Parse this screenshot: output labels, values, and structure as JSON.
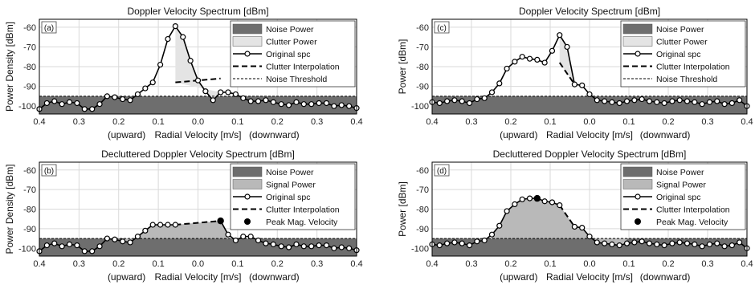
{
  "colors": {
    "noise_fill": "#6e6e6e",
    "clutter_fill": "#e4e4e4",
    "signal_fill": "#b9b9b9",
    "line": "#000000",
    "grid": "#d9d9d9",
    "background": "#ffffff"
  },
  "chart_data": [
    {
      "type": "area",
      "panel_label": "(a)",
      "title": "Doppler Velocity Spectrum [dBm]",
      "ylabel": "Power Density [dBm]",
      "xlabel": "Radial Velocity [m/s]",
      "x_direction_left": "(upward)",
      "x_direction_right": "(downward)",
      "xticks": [
        "0.4",
        "0.3",
        "0.2",
        "0.1",
        "0.0",
        "0.1",
        "0.2",
        "0.3",
        "0.4"
      ],
      "yticks": [
        "-60",
        "-70",
        "-80",
        "-90",
        "-100"
      ],
      "xlim": [
        -0.4,
        0.4
      ],
      "ylim": [
        -104,
        -56
      ],
      "grid": true,
      "legend_position": "top-right",
      "legend": [
        "Noise Power",
        "Clutter Power",
        "Original spc",
        "Clutter Interpolation",
        "Noise Threshold"
      ],
      "mode": "clutter",
      "noise_level": -95,
      "band": [
        -0.05,
        0.05
      ],
      "peak": null,
      "x": [
        -0.4,
        -0.381,
        -0.362,
        -0.343,
        -0.324,
        -0.305,
        -0.286,
        -0.267,
        -0.248,
        -0.229,
        -0.21,
        -0.19,
        -0.171,
        -0.152,
        -0.133,
        -0.114,
        -0.095,
        -0.076,
        -0.057,
        -0.038,
        -0.019,
        0.0,
        0.019,
        0.038,
        0.057,
        0.076,
        0.095,
        0.114,
        0.133,
        0.152,
        0.171,
        0.19,
        0.21,
        0.229,
        0.248,
        0.267,
        0.286,
        0.305,
        0.324,
        0.343,
        0.362,
        0.381,
        0.4
      ],
      "y": [
        -101.5,
        -98.5,
        -97.5,
        -99,
        -98,
        -98.5,
        -101.5,
        -101.5,
        -99,
        -95,
        -95.5,
        -96.5,
        -97,
        -94,
        -91,
        -88,
        -79,
        -66,
        -59.5,
        -65,
        -77,
        -87,
        -92.5,
        -97,
        -93,
        -93,
        -94,
        -96,
        -97.5,
        -97.5,
        -97,
        -98,
        -99,
        -99.5,
        -98,
        -99,
        -99,
        -98.5,
        -98.5,
        -100,
        -99.5,
        -100,
        -101
      ],
      "interpolation": {
        "x": [
          -0.057,
          0.057
        ],
        "y": [
          -88,
          -86
        ]
      }
    },
    {
      "type": "area",
      "panel_label": "(b)",
      "title": "Decluttered Doppler Velocity Spectrum [dBm]",
      "ylabel": "Power Density [dBm]",
      "xlabel": "Radial Velocity [m/s]",
      "x_direction_left": "(upward)",
      "x_direction_right": "(downward)",
      "xticks": [
        "0.4",
        "0.3",
        "0.2",
        "0.1",
        "0.0",
        "0.1",
        "0.2",
        "0.3",
        "0.4"
      ],
      "yticks": [
        "-60",
        "-70",
        "-80",
        "-90",
        "-100"
      ],
      "xlim": [
        -0.4,
        0.4
      ],
      "ylim": [
        -104,
        -56
      ],
      "grid": true,
      "legend_position": "top-right",
      "legend": [
        "Noise Power",
        "Signal Power",
        "Original spc",
        "Clutter Interpolation",
        "Peak Mag. Velocity"
      ],
      "mode": "signal",
      "noise_level": -95,
      "band": [
        -0.19,
        0.09
      ],
      "peak": {
        "x": 0.057,
        "y": -86
      },
      "x": [
        -0.4,
        -0.381,
        -0.362,
        -0.343,
        -0.324,
        -0.305,
        -0.286,
        -0.267,
        -0.248,
        -0.229,
        -0.21,
        -0.19,
        -0.171,
        -0.152,
        -0.133,
        -0.114,
        -0.095,
        -0.076,
        -0.057,
        0.057,
        0.076,
        0.095,
        0.114,
        0.133,
        0.152,
        0.171,
        0.19,
        0.21,
        0.229,
        0.248,
        0.267,
        0.286,
        0.305,
        0.324,
        0.343,
        0.362,
        0.381,
        0.4
      ],
      "y": [
        -101.5,
        -98.5,
        -97.5,
        -99,
        -98,
        -98.5,
        -101.5,
        -101.5,
        -99,
        -95,
        -95.5,
        -96.5,
        -97,
        -94,
        -91,
        -88,
        -88,
        -88,
        -88,
        -86,
        -93,
        -96,
        -94,
        -94,
        -96,
        -97.5,
        -98,
        -99,
        -99.5,
        -98,
        -99,
        -99,
        -98.5,
        -98.5,
        -100,
        -99.5,
        -100,
        -101
      ],
      "interpolation": {
        "x": [
          -0.057,
          0.057
        ],
        "y": [
          -88,
          -86
        ]
      }
    },
    {
      "type": "area",
      "panel_label": "(c)",
      "title": "Doppler Velocity Spectrum [dBm]",
      "ylabel": "Power [dBm]",
      "xlabel": "Radial Velocity [m/s]",
      "x_direction_left": "(upward)",
      "x_direction_right": "(downward)",
      "xticks": [
        "0.4",
        "0.3",
        "0.2",
        "0.1",
        "0.0",
        "0.1",
        "0.2",
        "0.3",
        "0.4"
      ],
      "yticks": [
        "-60",
        "-70",
        "-80",
        "-90",
        "-100"
      ],
      "xlim": [
        -0.4,
        0.4
      ],
      "ylim": [
        -104,
        -56
      ],
      "grid": true,
      "legend_position": "top-right",
      "legend": [
        "Noise Power",
        "Clutter Power",
        "Original spc",
        "Clutter Interpolation",
        "Noise Threshold"
      ],
      "mode": "clutter",
      "noise_level": -95,
      "band": [
        -0.05,
        0.05
      ],
      "peak": null,
      "x": [
        -0.4,
        -0.381,
        -0.362,
        -0.343,
        -0.324,
        -0.305,
        -0.286,
        -0.267,
        -0.248,
        -0.229,
        -0.21,
        -0.19,
        -0.171,
        -0.152,
        -0.133,
        -0.114,
        -0.095,
        -0.076,
        -0.057,
        -0.038,
        -0.019,
        0.0,
        0.019,
        0.038,
        0.057,
        0.076,
        0.095,
        0.114,
        0.133,
        0.152,
        0.171,
        0.19,
        0.21,
        0.229,
        0.248,
        0.267,
        0.286,
        0.305,
        0.324,
        0.343,
        0.362,
        0.381,
        0.4
      ],
      "y": [
        -98,
        -98.5,
        -97.5,
        -97,
        -97.5,
        -98.5,
        -96.5,
        -96,
        -93,
        -88.5,
        -81,
        -77.5,
        -75,
        -76,
        -76.5,
        -78,
        -72,
        -64,
        -70,
        -89,
        -89.5,
        -94,
        -97,
        -97.5,
        -98,
        -98.5,
        -97.5,
        -97,
        -96.5,
        -97.5,
        -98,
        -98.5,
        -97.5,
        -97,
        -97.5,
        -98,
        -99,
        -98,
        -97.5,
        -99,
        -98.5,
        -97,
        -100
      ],
      "interpolation": {
        "x": [
          -0.076,
          -0.038
        ],
        "y": [
          -78,
          -89
        ]
      }
    },
    {
      "type": "area",
      "panel_label": "(d)",
      "title": "Decluttered Doppler Velocity Spectrum [dBm]",
      "ylabel": "Power [dBm]",
      "xlabel": "Radial Velocity [m/s]",
      "x_direction_left": "(upward)",
      "x_direction_right": "(downward)",
      "xticks": [
        "0.4",
        "0.3",
        "0.2",
        "0.1",
        "0.0",
        "0.1",
        "0.2",
        "0.3",
        "0.4"
      ],
      "yticks": [
        "-60",
        "-70",
        "-80",
        "-90",
        "-100"
      ],
      "xlim": [
        -0.4,
        0.4
      ],
      "ylim": [
        -104,
        -56
      ],
      "grid": true,
      "legend_position": "top-right",
      "legend": [
        "Noise Power",
        "Signal Power",
        "Original spc",
        "Clutter Interpolation",
        "Peak Mag. Velocity"
      ],
      "mode": "signal",
      "noise_level": -95,
      "band": [
        -0.248,
        0.095
      ],
      "peak": {
        "x": -0.133,
        "y": -74.5
      },
      "x": [
        -0.4,
        -0.381,
        -0.362,
        -0.343,
        -0.324,
        -0.305,
        -0.286,
        -0.267,
        -0.248,
        -0.229,
        -0.21,
        -0.19,
        -0.171,
        -0.152,
        -0.133,
        -0.114,
        -0.095,
        -0.076,
        -0.038,
        -0.019,
        0.0,
        0.019,
        0.038,
        0.057,
        0.076,
        0.095,
        0.114,
        0.133,
        0.152,
        0.171,
        0.19,
        0.21,
        0.229,
        0.248,
        0.267,
        0.286,
        0.305,
        0.324,
        0.343,
        0.362,
        0.381,
        0.4
      ],
      "y": [
        -98,
        -98.5,
        -97.5,
        -97,
        -97.5,
        -98.5,
        -96.5,
        -96,
        -93,
        -88.5,
        -81,
        -77.5,
        -75,
        -74.5,
        -74.5,
        -76,
        -76.5,
        -78,
        -89,
        -89.5,
        -94,
        -97,
        -97.5,
        -98,
        -98.5,
        -97.5,
        -97,
        -96.5,
        -97.5,
        -98,
        -98.5,
        -97.5,
        -97,
        -97.5,
        -98,
        -99,
        -98,
        -97.5,
        -99,
        -98.5,
        -97,
        -100
      ],
      "interpolation": {
        "x": [
          -0.076,
          -0.038
        ],
        "y": [
          -78,
          -89
        ]
      }
    }
  ]
}
